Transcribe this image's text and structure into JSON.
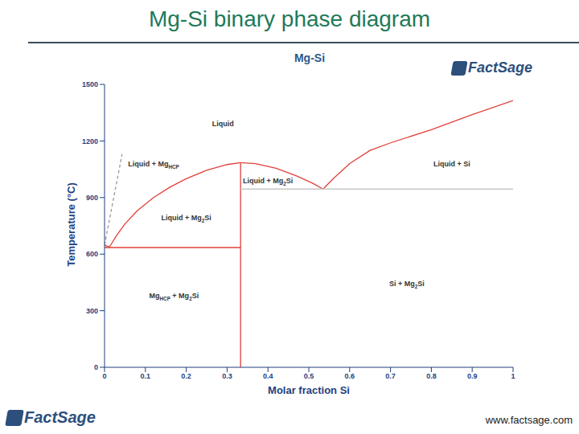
{
  "page": {
    "title": "Mg-Si binary phase diagram",
    "logo": "FactSage",
    "footer": "www.factsage.com"
  },
  "chart_data": {
    "type": "line",
    "title": "Mg-Si",
    "x_label": "Molar fraction Si",
    "y_label": "Temperature (°C)",
    "xlim": [
      0,
      1
    ],
    "ylim": [
      0,
      1500
    ],
    "xticks": [
      0,
      0.1,
      0.2,
      0.3,
      0.4,
      0.5,
      0.6,
      0.7,
      0.8,
      0.9,
      1
    ],
    "yticks": [
      0,
      300,
      600,
      900,
      1200,
      1500
    ],
    "grid": false,
    "series": [
      {
        "color": "#e0403a",
        "x": [
          0,
          0.012,
          0.03,
          0.05,
          0.08,
          0.12,
          0.16,
          0.2,
          0.25,
          0.3,
          0.333
        ],
        "values": [
          648,
          638,
          700,
          760,
          830,
          900,
          955,
          1000,
          1045,
          1075,
          1085
        ]
      },
      {
        "color": "#e0403a",
        "x": [
          0.333,
          0.37,
          0.42,
          0.47,
          0.51,
          0.535
        ],
        "values": [
          1085,
          1080,
          1055,
          1015,
          975,
          945
        ]
      },
      {
        "color": "#e0403a",
        "x": [
          0.535,
          0.56,
          0.6,
          0.65,
          0.7,
          0.8,
          0.9,
          1
        ],
        "values": [
          945,
          1000,
          1080,
          1150,
          1190,
          1260,
          1340,
          1414
        ]
      },
      {
        "color": "#e0403a",
        "x": [
          0,
          0.333
        ],
        "values": [
          635,
          635
        ]
      },
      {
        "color": "#e0403a",
        "x": [
          0.333,
          0.333
        ],
        "values": [
          0,
          1085
        ]
      },
      {
        "color": "#c8c8c8",
        "x": [
          0.333,
          1
        ],
        "values": [
          945,
          945
        ]
      },
      {
        "color": "#999999",
        "line_style": "dashed",
        "x": [
          0,
          0.043
        ],
        "values": [
          648,
          1130
        ]
      }
    ],
    "annotations": [
      {
        "text": "Liquid",
        "x": 0.29,
        "y": 1287
      },
      {
        "text": "Liquid + MgHCP",
        "x": 0.12,
        "y": 1074
      },
      {
        "text": "Liquid + Mg2Si",
        "x": 0.2,
        "y": 788
      },
      {
        "text": "Liquid + Mg2Si",
        "x": 0.4,
        "y": 984
      },
      {
        "text": "Liquid + Si",
        "x": 0.85,
        "y": 1074
      },
      {
        "text": "MgHCP + Mg2Si",
        "x": 0.17,
        "y": 375
      },
      {
        "text": "Si + Mg2Si",
        "x": 0.74,
        "y": 439
      }
    ]
  }
}
